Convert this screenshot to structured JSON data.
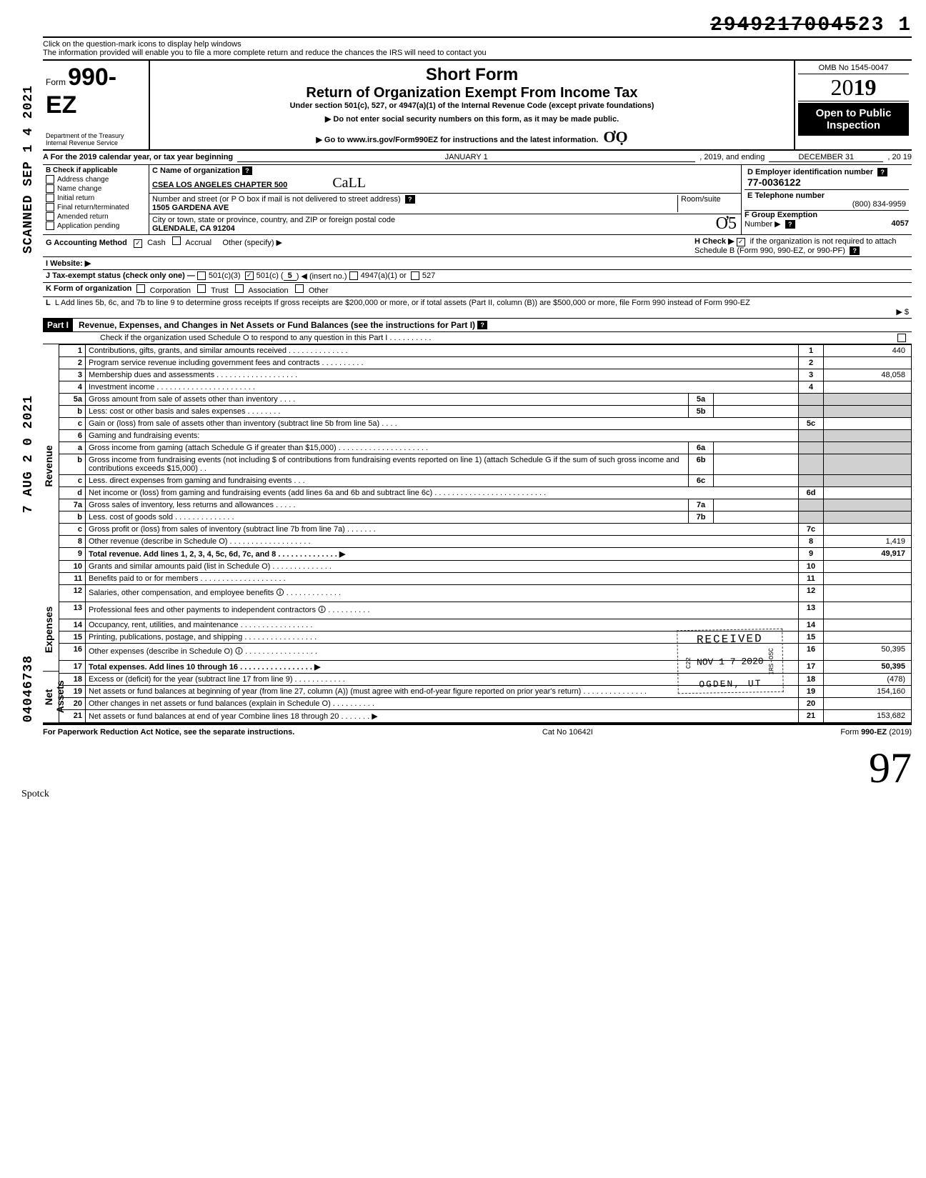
{
  "header_stamp": {
    "strike": "29492170045",
    "rest": "23  1"
  },
  "help": {
    "line1": "Click on the question-mark icons to display help windows",
    "line2": "The information provided will enable you to file a more complete return and reduce the chances the IRS will need to contact you"
  },
  "form": {
    "prefix": "Form",
    "number": "990-EZ",
    "short": "Short Form",
    "title": "Return of Organization Exempt From Income Tax",
    "under": "Under section 501(c), 527, or 4947(a)(1) of the Internal Revenue Code (except private foundations)",
    "instr1": "▶ Do not enter social security numbers on this form, as it may be made public.",
    "instr2": "▶ Go to www.irs.gov/Form990EZ for instructions and the latest information.",
    "dept": "Department of the Treasury\nInternal Revenue Service",
    "omb": "OMB No  1545-0047",
    "year": "2019",
    "open": "Open to Public",
    "insp": "Inspection"
  },
  "rowA": {
    "label": "A For the 2019 calendar year, or tax year beginning",
    "begin": "JANUARY 1",
    "mid": ", 2019, and ending",
    "end": "DECEMBER 31",
    "tail": ", 20   19"
  },
  "B": {
    "label": "B  Check if applicable",
    "items": [
      "Address change",
      "Name change",
      "Initial return",
      "Final return/terminated",
      "Amended return",
      "Application pending"
    ]
  },
  "C": {
    "name_label": "C  Name of organization",
    "name": "CSEA LOS ANGELES CHAPTER 500",
    "hand": "CaLL",
    "addr_label": "Number and street (or P O  box if mail is not delivered to street address)",
    "room_label": "Room/suite",
    "addr": "1505 GARDENA AVE",
    "city_label": "City or town, state or province, country, and ZIP or foreign postal code",
    "city": "GLENDALE, CA 91204"
  },
  "D": {
    "label": "D Employer identification number",
    "value": "77-0036122"
  },
  "E": {
    "label": "E  Telephone number",
    "value": "(800) 834-9959"
  },
  "F": {
    "label": "F  Group Exemption",
    "label2": "Number  ▶",
    "value": "4057"
  },
  "G": {
    "label": "G  Accounting Method",
    "cash": "Cash",
    "accrual": "Accrual",
    "other": "Other (specify) ▶"
  },
  "H": {
    "text": "H  Check ▶",
    "text2": "if the organization is not required to attach Schedule B (Form 990, 990-EZ, or 990-PF)"
  },
  "I": {
    "label": "I   Website: ▶"
  },
  "J": {
    "label": "J  Tax-exempt status (check only one) —",
    "c501c3": "501(c)(3)",
    "c501c": "501(c) (",
    "insert": "5",
    "insert_tail": ")  ◀ (insert no.)",
    "c4947": "4947(a)(1) or",
    "c527": "527"
  },
  "K": {
    "label": "K  Form of organization",
    "opts": [
      "Corporation",
      "Trust",
      "Association",
      "Other"
    ]
  },
  "L": {
    "text": "L  Add lines 5b, 6c, and 7b to line 9 to determine gross receipts  If gross receipts are $200,000 or more, or if total assets (Part II, column (B)) are $500,000 or more, file Form 990 instead of Form 990-EZ",
    "arrow": "▶   $"
  },
  "part1": {
    "label": "Part I",
    "title": "Revenue, Expenses, and Changes in Net Assets or Fund Balances (see the instructions for Part I)",
    "check": "Check if the organization used Schedule O to respond to any question in this Part I  .  .  .  .  .  .  .  .  .  ."
  },
  "side": {
    "revenue": "Revenue",
    "expenses": "Expenses",
    "net": "Net Assets",
    "scanned": "SCANNED SEP 1 4 2021",
    "aug": "7 AUG 2 0 2021",
    "nums": "04046738"
  },
  "lines": {
    "1": {
      "n": "1",
      "t": "Contributions, gifts, grants, and similar amounts received .  .  .  .  .  .  .  .  .  .  .  .  .  .",
      "r": "1",
      "v": "440"
    },
    "2": {
      "n": "2",
      "t": "Program service revenue including government fees and contracts   .  .  .  .  .  .  .  .  .  .",
      "r": "2",
      "v": ""
    },
    "3": {
      "n": "3",
      "t": "Membership dues and assessments .   .   .   .   .   .   .   .   .   .   .   .   .   .   .   .   .   .   .",
      "r": "3",
      "v": "48,058"
    },
    "4": {
      "n": "4",
      "t": "Investment income    .   .   .   .   .   .   .   .   .   .   .   .   .   .   .   .   .   .   .   .   .   .   .",
      "r": "4",
      "v": ""
    },
    "5a": {
      "n": "5a",
      "t": "Gross amount from sale of assets other than inventory    .   .   .   .",
      "m": "5a"
    },
    "5b": {
      "n": "b",
      "t": "Less: cost or other basis and sales expenses .   .   .   .   .   .   .   .",
      "m": "5b"
    },
    "5c": {
      "n": "c",
      "t": "Gain or (loss) from sale of assets other than inventory (subtract line 5b from line 5a)  .   .   .   .",
      "r": "5c",
      "v": ""
    },
    "6": {
      "n": "6",
      "t": "Gaming and fundraising events:"
    },
    "6a": {
      "n": "a",
      "t": "Gross income from gaming (attach Schedule G if greater than $15,000) .  .  .  .  .  .  .  .  .  .  .  .  .  .  .  .  .  .  .  .  .",
      "m": "6a"
    },
    "6b": {
      "n": "b",
      "t": "Gross income from fundraising events (not including  $                     of contributions from fundraising events reported on line 1) (attach Schedule G if the sum of such gross income and contributions exceeds $15,000) .  .",
      "m": "6b"
    },
    "6c": {
      "n": "c",
      "t": "Less. direct expenses from gaming and fundraising events   .   .   .",
      "m": "6c"
    },
    "6d": {
      "n": "d",
      "t": "Net income or (loss) from gaming and fundraising events (add lines 6a and 6b and subtract line 6c)   .   .   .   .   .   .   .   .   .   .   .   .   .   .   .   .   .   .   .   .   .   .   .   .   .   .",
      "r": "6d",
      "v": ""
    },
    "7a": {
      "n": "7a",
      "t": "Gross sales of inventory, less returns and allowances  .   .   .   .   .",
      "m": "7a"
    },
    "7b": {
      "n": "b",
      "t": "Less. cost of goods sold     .   .   .   .   .   .   .   .   .   .   .   .   .   .",
      "m": "7b"
    },
    "7c": {
      "n": "c",
      "t": "Gross profit or (loss) from sales of inventory (subtract line 7b from line 7a)   .   .   .   .   .   .   .",
      "r": "7c",
      "v": ""
    },
    "8": {
      "n": "8",
      "t": "Other revenue (describe in Schedule O) .   .   .   .   .   .   .   .   .   .   .   .   .   .   .   .   .   .   .",
      "r": "8",
      "v": "1,419"
    },
    "9": {
      "n": "9",
      "t": "Total revenue. Add lines 1, 2, 3, 4, 5c, 6d, 7c, and 8   .   .   .   .   .   .   .   .   .   .   .   .   .   . ▶",
      "r": "9",
      "v": "49,917",
      "bold": true
    },
    "10": {
      "n": "10",
      "t": "Grants and similar amounts paid (list in Schedule O)    .   .   .   .   .   .   .   .   .   .   .   .   .   .",
      "r": "10",
      "v": ""
    },
    "11": {
      "n": "11",
      "t": "Benefits paid to or for members   .   .   .   .   .   .   .   .   .   .   .   .   .   .   .   .   .   .   .   .",
      "r": "11",
      "v": ""
    },
    "12": {
      "n": "12",
      "t": "Salaries, other compensation, and employee benefits 🛈   .   .   .   .   .   .   .   .   .   .   .   .   .",
      "r": "12",
      "v": ""
    },
    "13": {
      "n": "13",
      "t": "Professional fees and other payments to independent contractors 🛈  .   .   .   .   .   .   .   .   .   .",
      "r": "13",
      "v": ""
    },
    "14": {
      "n": "14",
      "t": "Occupancy, rent, utilities, and maintenance    .   .   .   .   .   .   .   .   .   .   .   .   .   .   .   .   .",
      "r": "14",
      "v": ""
    },
    "15": {
      "n": "15",
      "t": "Printing, publications, postage, and shipping .   .   .   .   .   .   .   .   .   .   .   .   .   .   .   .   .",
      "r": "15",
      "v": ""
    },
    "16": {
      "n": "16",
      "t": "Other expenses (describe in Schedule O)  🛈 .   .   .   .   .   .   .   .   .   .   .   .   .   .   .   .   .",
      "r": "16",
      "v": "50,395"
    },
    "17": {
      "n": "17",
      "t": "Total expenses. Add lines 10 through 16  .   .   .   .   .   .   .   .   .   .   .   .   .   .   .   .   . ▶",
      "r": "17",
      "v": "50,395",
      "bold": true
    },
    "18": {
      "n": "18",
      "t": "Excess or (deficit) for the year (subtract line 17 from line 9)    .   .   .   .   .   .   .   .   .   .   .   .",
      "r": "18",
      "v": "(478)"
    },
    "19": {
      "n": "19",
      "t": "Net assets or fund balances at beginning of year (from line 27, column (A)) (must agree with end-of-year figure reported on prior year's return)    .   .   .   .   .   .   .   .   .   .   .   .   .   .   .",
      "r": "19",
      "v": "154,160"
    },
    "20": {
      "n": "20",
      "t": "Other changes in net assets or fund balances (explain in Schedule O) .   .   .   .   .   .   .   .   .   .",
      "r": "20",
      "v": ""
    },
    "21": {
      "n": "21",
      "t": "Net assets or fund balances at end of year  Combine lines 18 through 20   .   .   .   .   .   .   . ▶",
      "r": "21",
      "v": "153,682"
    }
  },
  "received": {
    "l1": "RECEIVED",
    "l2": "NOV 1 7 2020",
    "l3": "OGDEN, UT",
    "side": "IRS-OSC",
    "side2": "C22"
  },
  "footer": {
    "left": "For Paperwork Reduction Act Notice, see the separate instructions.",
    "mid": "Cat No  10642I",
    "right": "Form 990-EZ (2019)"
  }
}
